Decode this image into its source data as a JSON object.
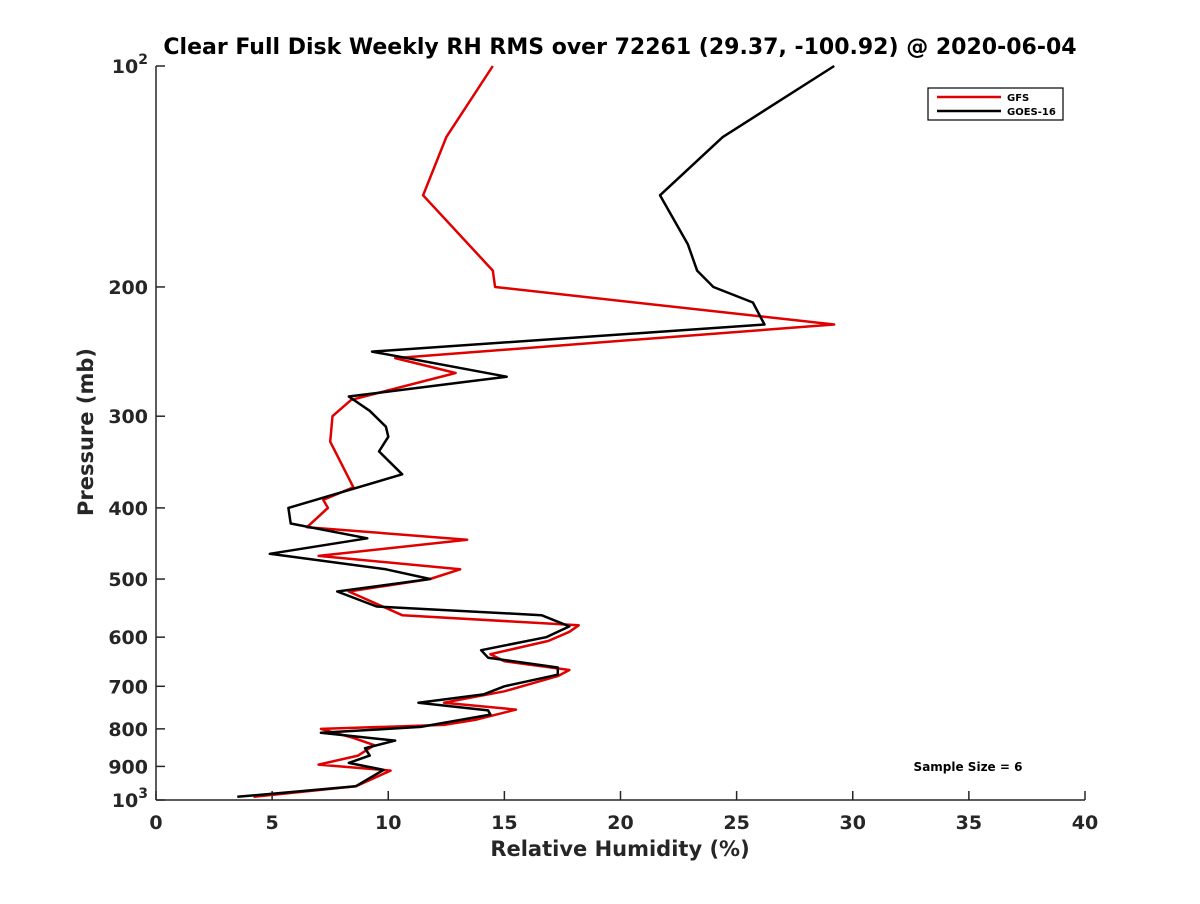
{
  "chart_data": {
    "type": "line",
    "title": "Clear Full Disk Weekly RH RMS over 72261 (29.37, -100.92) @ 2020-06-04",
    "xlabel": "Relative Humidity (%)",
    "ylabel": "Pressure (mb)",
    "xlim": [
      0,
      40
    ],
    "ylim": [
      100,
      1000
    ],
    "y_scale": "log",
    "y_reversed": true,
    "grid": false,
    "legend_position": "top-right",
    "x_ticks": [
      0,
      5,
      10,
      15,
      20,
      25,
      30,
      35,
      40
    ],
    "x_tick_labels": [
      "0",
      "5",
      "10",
      "15",
      "20",
      "25",
      "30",
      "35",
      "40"
    ],
    "y_ticks": [
      100,
      200,
      300,
      400,
      500,
      600,
      700,
      800,
      900,
      1000
    ],
    "y_tick_labels": [
      {
        "base": "10",
        "sup": "2"
      },
      {
        "base": "200",
        "sup": ""
      },
      {
        "base": "300",
        "sup": ""
      },
      {
        "base": "400",
        "sup": ""
      },
      {
        "base": "500",
        "sup": ""
      },
      {
        "base": "600",
        "sup": ""
      },
      {
        "base": "700",
        "sup": ""
      },
      {
        "base": "800",
        "sup": ""
      },
      {
        "base": "900",
        "sup": ""
      },
      {
        "base": "10",
        "sup": "3"
      }
    ],
    "annotation": "Sample Size = 6",
    "series": [
      {
        "name": "GFS",
        "color": "#e00000",
        "points": [
          [
            14.5,
            100
          ],
          [
            12.5,
            125
          ],
          [
            11.5,
            150
          ],
          [
            14.5,
            190
          ],
          [
            14.6,
            200
          ],
          [
            29.2,
            225
          ],
          [
            10.3,
            250
          ],
          [
            12.9,
            262
          ],
          [
            8.4,
            285
          ],
          [
            7.6,
            300
          ],
          [
            7.5,
            325
          ],
          [
            8.5,
            375
          ],
          [
            7.2,
            390
          ],
          [
            7.4,
            400
          ],
          [
            6.5,
            425
          ],
          [
            13.4,
            442
          ],
          [
            7.0,
            465
          ],
          [
            13.1,
            485
          ],
          [
            11.8,
            500
          ],
          [
            8.3,
            520
          ],
          [
            10.6,
            560
          ],
          [
            18.2,
            578
          ],
          [
            17.8,
            590
          ],
          [
            16.9,
            607
          ],
          [
            14.4,
            633
          ],
          [
            15.0,
            647
          ],
          [
            17.8,
            665
          ],
          [
            17.3,
            678
          ],
          [
            15.0,
            711
          ],
          [
            12.4,
            737
          ],
          [
            15.5,
            753
          ],
          [
            13.8,
            777
          ],
          [
            12.4,
            790
          ],
          [
            7.1,
            800
          ],
          [
            8.5,
            823
          ],
          [
            9.4,
            842
          ],
          [
            8.7,
            870
          ],
          [
            7.0,
            895
          ],
          [
            10.1,
            912
          ],
          [
            8.6,
            958
          ],
          [
            4.2,
            990
          ]
        ]
      },
      {
        "name": "GOES-16",
        "color": "#000000",
        "points": [
          [
            29.2,
            100
          ],
          [
            24.4,
            125
          ],
          [
            21.7,
            150
          ],
          [
            22.9,
            175
          ],
          [
            23.3,
            190
          ],
          [
            24.0,
            200
          ],
          [
            25.7,
            210
          ],
          [
            26.2,
            225
          ],
          [
            9.3,
            245
          ],
          [
            15.1,
            265
          ],
          [
            8.3,
            282
          ],
          [
            9.2,
            295
          ],
          [
            9.9,
            310
          ],
          [
            10.0,
            320
          ],
          [
            9.6,
            335
          ],
          [
            10.6,
            360
          ],
          [
            5.7,
            400
          ],
          [
            5.8,
            420
          ],
          [
            9.1,
            440
          ],
          [
            4.9,
            462
          ],
          [
            9.9,
            485
          ],
          [
            11.8,
            500
          ],
          [
            7.8,
            520
          ],
          [
            9.5,
            545
          ],
          [
            16.6,
            560
          ],
          [
            17.8,
            580
          ],
          [
            16.8,
            600
          ],
          [
            14.0,
            625
          ],
          [
            14.3,
            640
          ],
          [
            17.3,
            660
          ],
          [
            17.3,
            675
          ],
          [
            15.0,
            700
          ],
          [
            14.1,
            718
          ],
          [
            11.3,
            737
          ],
          [
            14.3,
            755
          ],
          [
            14.4,
            765
          ],
          [
            11.4,
            795
          ],
          [
            7.1,
            810
          ],
          [
            10.3,
            830
          ],
          [
            9.0,
            850
          ],
          [
            9.2,
            870
          ],
          [
            8.3,
            890
          ],
          [
            9.8,
            910
          ],
          [
            8.6,
            958
          ],
          [
            3.5,
            990
          ]
        ]
      }
    ]
  }
}
